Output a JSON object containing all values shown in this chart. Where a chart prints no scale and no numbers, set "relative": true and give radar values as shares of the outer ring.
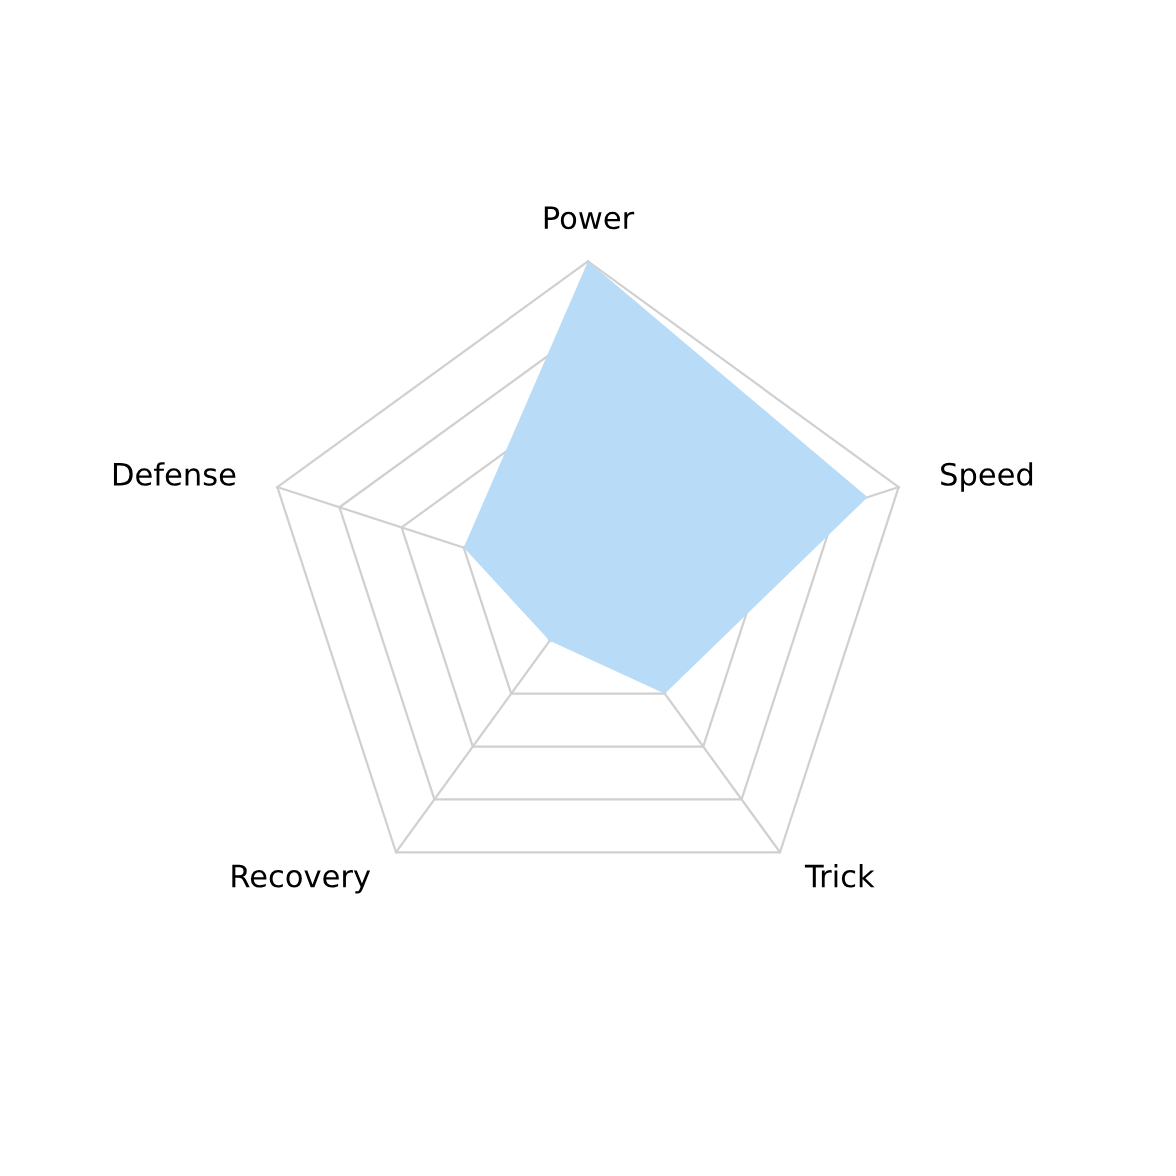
{
  "chart_data": {
    "type": "radar",
    "relative": true,
    "grid": true,
    "categories": [
      "Power",
      "Speed",
      "Trick",
      "Recovery",
      "Defense"
    ],
    "series": [
      {
        "color": "#b8dcf8",
        "values": [
          1,
          0.9,
          0.4,
          0.2,
          0.4
        ]
      }
    ]
  }
}
